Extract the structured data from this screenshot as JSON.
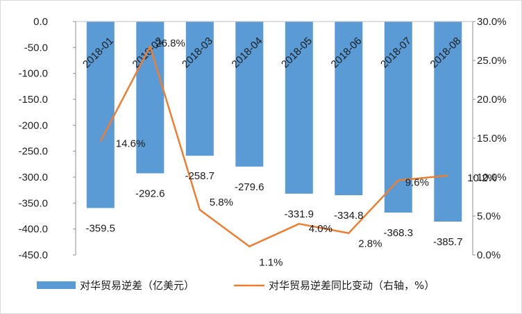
{
  "chart_data": {
    "type": "bar+line",
    "categories": [
      "2018-01",
      "2018-02",
      "2018-03",
      "2018-04",
      "2018-05",
      "2018-06",
      "2018-07",
      "2018-08"
    ],
    "series": [
      {
        "name": "对华贸易逆差（亿美元）",
        "type": "bar",
        "axis": "left",
        "values": [
          -359.5,
          -292.6,
          -258.7,
          -279.6,
          -331.9,
          -334.8,
          -368.3,
          -385.7
        ],
        "labels": [
          "-359.5",
          "-292.6",
          "-258.7",
          "-279.6",
          "-331.9",
          "-334.8",
          "-368.3",
          "-385.7"
        ],
        "color": "#5b9bd5"
      },
      {
        "name": "对华贸易逆差同比变动（右轴，%）",
        "type": "line",
        "axis": "right",
        "values": [
          14.6,
          26.8,
          5.8,
          1.1,
          4.0,
          2.8,
          9.6,
          10.2
        ],
        "labels": [
          "14.6%",
          "26.8%",
          "5.8%",
          "1.1%",
          "4.0%",
          "2.8%",
          "9.6%",
          "10.2%"
        ],
        "color": "#ed7d31"
      }
    ],
    "y_left": {
      "min": -450,
      "max": 0,
      "step": 50,
      "ticks": [
        "0.0",
        "-50.0",
        "-100.0",
        "-150.0",
        "-200.0",
        "-250.0",
        "-300.0",
        "-350.0",
        "-400.0",
        "-450.0"
      ]
    },
    "y_right": {
      "min": 0,
      "max": 30,
      "step": 5,
      "ticks": [
        "30.0%",
        "25.0%",
        "20.0%",
        "15.0%",
        "10.0%",
        "5.0%",
        "0.0%"
      ]
    },
    "legend_position": "bottom",
    "grid": false
  }
}
